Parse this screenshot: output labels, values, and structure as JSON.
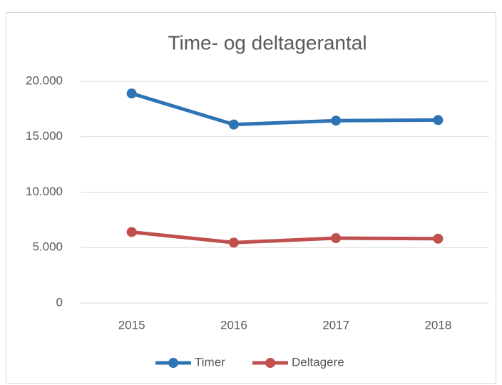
{
  "chart_data": {
    "type": "line",
    "title": "Time- og deltagerantal",
    "categories": [
      "2015",
      "2016",
      "2017",
      "2018"
    ],
    "series": [
      {
        "name": "Timer",
        "color": "#2e74b5",
        "values": [
          18900,
          16100,
          16450,
          16500
        ]
      },
      {
        "name": "Deltagere",
        "color": "#c0504d",
        "values": [
          6400,
          5450,
          5850,
          5800
        ]
      }
    ],
    "ylim": [
      0,
      20000
    ],
    "yticks": [
      0,
      {
        "value": 5000,
        "label": "5.000"
      },
      {
        "value": 10000,
        "label": "10.000"
      },
      {
        "value": 15000,
        "label": "15.000"
      },
      {
        "value": 20000,
        "label": "20.000"
      }
    ],
    "grid": true,
    "legend": "bottom"
  }
}
